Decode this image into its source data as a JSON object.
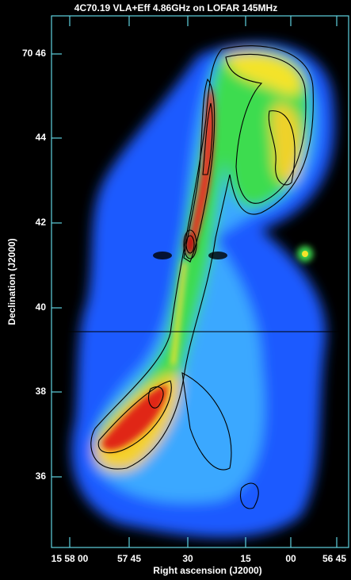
{
  "title": "4C70.19 VLA+Eff 4.86GHz on LOFAR 145MHz",
  "x_axis": {
    "label": "Right ascension (J2000)",
    "ticks": [
      "15 58 00",
      "57 45",
      "30",
      "15",
      "00",
      "56 45"
    ]
  },
  "y_axis": {
    "label": "Declination (J2000)",
    "ticks": [
      "70 46",
      "44",
      "42",
      "40",
      "38",
      "36"
    ]
  }
}
